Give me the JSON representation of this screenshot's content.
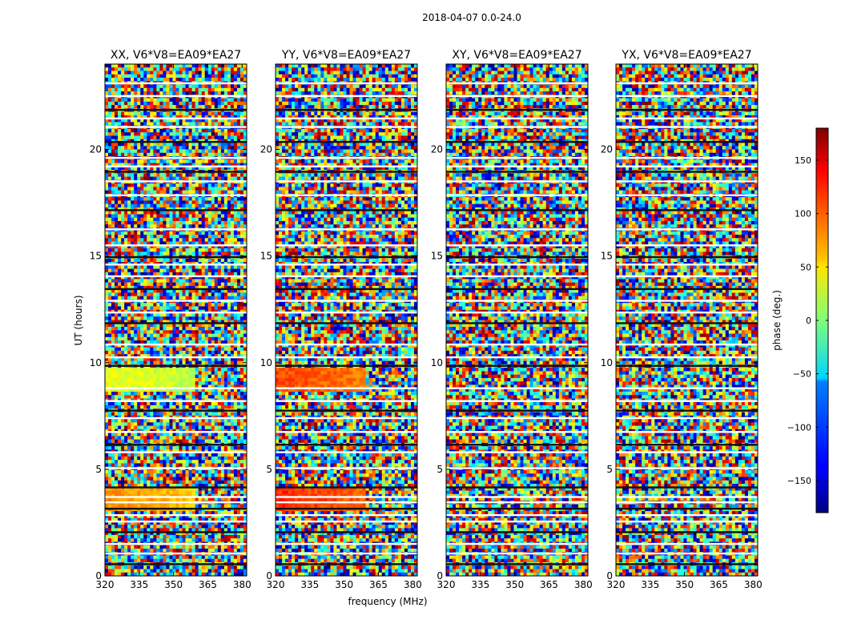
{
  "chart_data": {
    "type": "heatmap",
    "title": "2018-04-07 0.0-24.0",
    "xlabel": "frequency (MHz)",
    "ylabel": "UT (hours)",
    "xlim": [
      320,
      382
    ],
    "ylim": [
      0,
      24
    ],
    "xticks": [
      320,
      335,
      350,
      365,
      380
    ],
    "yticks": [
      0,
      5,
      10,
      15,
      20
    ],
    "panels": [
      {
        "title": "XX, V6*V8=EA09*EA27",
        "coherent": [
          {
            "from": 3.0,
            "to": 4.1,
            "value": 85
          },
          {
            "from": 8.7,
            "to": 9.8,
            "value": 40
          }
        ]
      },
      {
        "title": "YY, V6*V8=EA09*EA27",
        "coherent": [
          {
            "from": 3.0,
            "to": 4.1,
            "value": 120
          },
          {
            "from": 8.7,
            "to": 9.8,
            "value": 110
          }
        ]
      },
      {
        "title": "XY, V6*V8=EA09*EA27",
        "coherent": []
      },
      {
        "title": "YX, V6*V8=EA09*EA27",
        "coherent": []
      }
    ],
    "flagged_hours": [
      0.55,
      1.05,
      1.5,
      2.05,
      2.55,
      2.85,
      3.15,
      3.45,
      3.7,
      4.15,
      5.05,
      5.8,
      6.15,
      6.75,
      7.4,
      7.75,
      8.2,
      8.8,
      9.85,
      10.25,
      10.85,
      11.85,
      12.35,
      12.9,
      13.45,
      14.05,
      14.6,
      14.95,
      15.5,
      16.25,
      17.15,
      17.85,
      18.5,
      18.95,
      19.2,
      19.6,
      20.35,
      21.05,
      21.45,
      21.85,
      22.5,
      23.1
    ],
    "colorbar": {
      "label": "phase (deg.)",
      "range": [
        -180,
        180
      ],
      "ticks": [
        150,
        100,
        50,
        0,
        -50,
        -100,
        -150
      ],
      "tick_labels": [
        "150",
        "100",
        "50",
        "0",
        "−50",
        "−100",
        "−150"
      ]
    }
  }
}
